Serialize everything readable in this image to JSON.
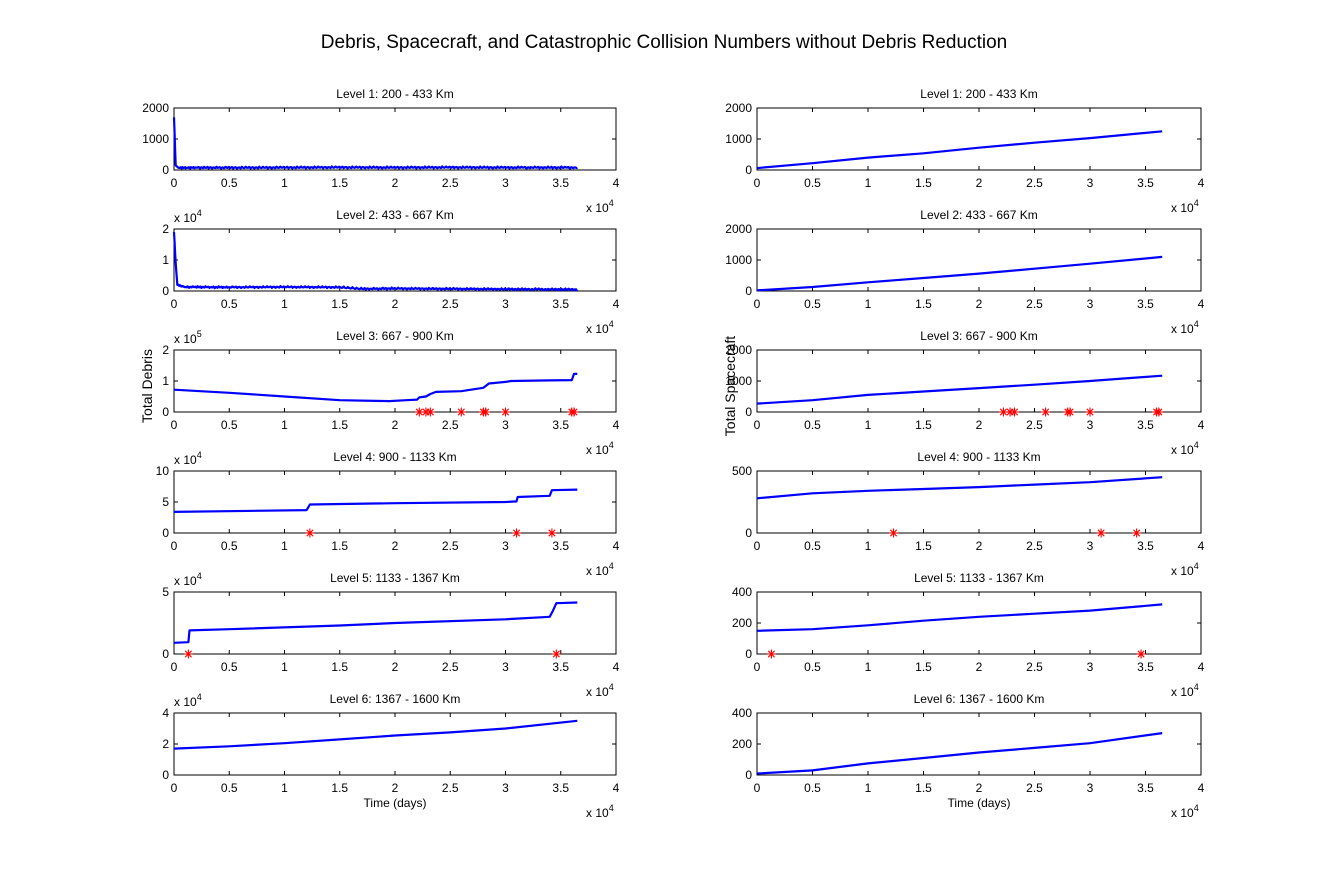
{
  "figure": {
    "title": "Debris, Spacecraft, and Catastrophic Collision Numbers without Debris Reduction"
  },
  "colors": {
    "line": "#0000ff",
    "marker": "#ff0000",
    "axes": "#000000",
    "background": "#ffffff"
  },
  "chart_data": [
    {
      "type": "line",
      "title": "Level 1: 200 - 433 Km",
      "column": "left",
      "row": 1,
      "xlabel": "",
      "ylabel": "",
      "xlim": [
        0,
        40000
      ],
      "ylim": [
        0,
        2000
      ],
      "xticks": [
        "0",
        "0.5",
        "1",
        "1.5",
        "2",
        "2.5",
        "3",
        "3.5",
        "4"
      ],
      "x_exponent": "4",
      "yticks": [
        "0",
        "1000",
        "2000"
      ],
      "y_exponent": null,
      "series": [
        {
          "noisy": true,
          "points": [
            [
              0,
              1700
            ],
            [
              150,
              150
            ],
            [
              400,
              70
            ],
            [
              2000,
              80
            ],
            [
              5000,
              75
            ],
            [
              10000,
              80
            ],
            [
              15000,
              85
            ],
            [
              20000,
              80
            ],
            [
              25000,
              85
            ],
            [
              30000,
              80
            ],
            [
              36500,
              80
            ]
          ]
        }
      ],
      "collisions": []
    },
    {
      "type": "line",
      "title": "Level 2: 433 - 667 Km",
      "column": "left",
      "row": 2,
      "xlabel": "",
      "ylabel": "",
      "xlim": [
        0,
        40000
      ],
      "ylim": [
        0,
        20000
      ],
      "xticks": [
        "0",
        "0.5",
        "1",
        "1.5",
        "2",
        "2.5",
        "3",
        "3.5",
        "4"
      ],
      "x_exponent": "4",
      "yticks": [
        "0",
        "1",
        "2"
      ],
      "y_exponent": "4",
      "series": [
        {
          "noisy": true,
          "points": [
            [
              0,
              19000
            ],
            [
              150,
              9000
            ],
            [
              300,
              2000
            ],
            [
              1000,
              1300
            ],
            [
              5000,
              1200
            ],
            [
              10000,
              1300
            ],
            [
              15000,
              1200
            ],
            [
              17000,
              700
            ],
            [
              20000,
              800
            ],
            [
              25000,
              700
            ],
            [
              30000,
              600
            ],
            [
              36500,
              500
            ]
          ]
        }
      ],
      "collisions": []
    },
    {
      "type": "line",
      "title": "Level 3: 667 - 900 Km",
      "column": "left",
      "row": 3,
      "xlabel": "",
      "ylabel": "Total Debris",
      "xlim": [
        0,
        40000
      ],
      "ylim": [
        0,
        200000
      ],
      "xticks": [
        "0",
        "0.5",
        "1",
        "1.5",
        "2",
        "2.5",
        "3",
        "3.5",
        "4"
      ],
      "x_exponent": "4",
      "yticks": [
        "0",
        "1",
        "2"
      ],
      "y_exponent": "5",
      "series": [
        {
          "noisy": false,
          "points": [
            [
              0,
              72000
            ],
            [
              5000,
              62000
            ],
            [
              10000,
              50000
            ],
            [
              15000,
              38000
            ],
            [
              19500,
              35000
            ],
            [
              21000,
              38000
            ],
            [
              22000,
              40000
            ],
            [
              22200,
              47000
            ],
            [
              22800,
              50000
            ],
            [
              23200,
              58000
            ],
            [
              23700,
              65000
            ],
            [
              26000,
              67000
            ],
            [
              26500,
              70000
            ],
            [
              28000,
              78000
            ],
            [
              28500,
              92000
            ],
            [
              30000,
              97000
            ],
            [
              30500,
              100000
            ],
            [
              34000,
              102000
            ],
            [
              36000,
              103000
            ],
            [
              36200,
              123000
            ],
            [
              36500,
              123000
            ]
          ]
        }
      ],
      "collisions": [
        22200,
        22800,
        23200,
        26000,
        28000,
        28200,
        30000,
        36000,
        36200
      ]
    },
    {
      "type": "line",
      "title": "Level 4: 900 - 1133 Km",
      "column": "left",
      "row": 4,
      "xlabel": "",
      "ylabel": "",
      "xlim": [
        0,
        40000
      ],
      "ylim": [
        0,
        100000
      ],
      "xticks": [
        "0",
        "0.5",
        "1",
        "1.5",
        "2",
        "2.5",
        "3",
        "3.5",
        "4"
      ],
      "x_exponent": "4",
      "yticks": [
        "0",
        "5",
        "10"
      ],
      "y_exponent": "4",
      "series": [
        {
          "noisy": false,
          "points": [
            [
              0,
              34000
            ],
            [
              12000,
              37000
            ],
            [
              12300,
              46000
            ],
            [
              20000,
              48000
            ],
            [
              30000,
              50000
            ],
            [
              31000,
              51000
            ],
            [
              31100,
              58000
            ],
            [
              34000,
              60000
            ],
            [
              34200,
              69000
            ],
            [
              36500,
              70000
            ]
          ]
        }
      ],
      "collisions": [
        12300,
        31000,
        34200
      ]
    },
    {
      "type": "line",
      "title": "Level 5: 1133 - 1367 Km",
      "column": "left",
      "row": 5,
      "xlabel": "",
      "ylabel": "",
      "xlim": [
        0,
        40000
      ],
      "ylim": [
        0,
        50000
      ],
      "xticks": [
        "0",
        "0.5",
        "1",
        "1.5",
        "2",
        "2.5",
        "3",
        "3.5",
        "4"
      ],
      "x_exponent": "4",
      "yticks": [
        "0",
        "5"
      ],
      "y_exponent": "4",
      "series": [
        {
          "noisy": false,
          "points": [
            [
              0,
              9000
            ],
            [
              1300,
              9500
            ],
            [
              1400,
              19000
            ],
            [
              5000,
              20000
            ],
            [
              15000,
              23000
            ],
            [
              20000,
              25000
            ],
            [
              30000,
              28000
            ],
            [
              34000,
              30000
            ],
            [
              34300,
              35000
            ],
            [
              34600,
              41000
            ],
            [
              36500,
              41500
            ]
          ]
        }
      ],
      "collisions": [
        1300,
        34600
      ]
    },
    {
      "type": "line",
      "title": "Level 6: 1367 - 1600 Km",
      "column": "left",
      "row": 6,
      "xlabel": "Time (days)",
      "ylabel": "",
      "xlim": [
        0,
        40000
      ],
      "ylim": [
        0,
        40000
      ],
      "xticks": [
        "0",
        "0.5",
        "1",
        "1.5",
        "2",
        "2.5",
        "3",
        "3.5",
        "4"
      ],
      "x_exponent": "4",
      "yticks": [
        "0",
        "2",
        "4"
      ],
      "y_exponent": "4",
      "series": [
        {
          "noisy": false,
          "points": [
            [
              0,
              17000
            ],
            [
              5000,
              18500
            ],
            [
              10000,
              20500
            ],
            [
              15000,
              23000
            ],
            [
              20000,
              25500
            ],
            [
              25000,
              27500
            ],
            [
              30000,
              30000
            ],
            [
              36500,
              35000
            ]
          ]
        }
      ],
      "collisions": []
    },
    {
      "type": "line",
      "title": "Level 1: 200 - 433 Km",
      "column": "right",
      "row": 1,
      "xlabel": "",
      "ylabel": "",
      "xlim": [
        0,
        40000
      ],
      "ylim": [
        0,
        2000
      ],
      "xticks": [
        "0",
        "0.5",
        "1",
        "1.5",
        "2",
        "2.5",
        "3",
        "3.5",
        "4"
      ],
      "x_exponent": "4",
      "yticks": [
        "0",
        "1000",
        "2000"
      ],
      "y_exponent": null,
      "series": [
        {
          "noisy": false,
          "points": [
            [
              0,
              60
            ],
            [
              5000,
              220
            ],
            [
              10000,
              400
            ],
            [
              15000,
              540
            ],
            [
              20000,
              720
            ],
            [
              25000,
              880
            ],
            [
              30000,
              1030
            ],
            [
              36500,
              1250
            ]
          ]
        }
      ],
      "collisions": []
    },
    {
      "type": "line",
      "title": "Level 2: 433 - 667 Km",
      "column": "right",
      "row": 2,
      "xlabel": "",
      "ylabel": "",
      "xlim": [
        0,
        40000
      ],
      "ylim": [
        0,
        2000
      ],
      "xticks": [
        "0",
        "0.5",
        "1",
        "1.5",
        "2",
        "2.5",
        "3",
        "3.5",
        "4"
      ],
      "x_exponent": "4",
      "yticks": [
        "0",
        "1000",
        "2000"
      ],
      "y_exponent": null,
      "series": [
        {
          "noisy": false,
          "points": [
            [
              0,
              20
            ],
            [
              5000,
              130
            ],
            [
              10000,
              280
            ],
            [
              15000,
              420
            ],
            [
              20000,
              560
            ],
            [
              25000,
              720
            ],
            [
              30000,
              880
            ],
            [
              36500,
              1100
            ]
          ]
        }
      ],
      "collisions": []
    },
    {
      "type": "line",
      "title": "Level 3: 667 - 900 Km",
      "column": "right",
      "row": 3,
      "xlabel": "",
      "ylabel": "Total Spacecraft",
      "xlim": [
        0,
        40000
      ],
      "ylim": [
        0,
        2000
      ],
      "xticks": [
        "0",
        "0.5",
        "1",
        "1.5",
        "2",
        "2.5",
        "3",
        "3.5",
        "4"
      ],
      "x_exponent": "4",
      "yticks": [
        "0",
        "1000",
        "2000"
      ],
      "y_exponent": null,
      "series": [
        {
          "noisy": false,
          "points": [
            [
              0,
              270
            ],
            [
              5000,
              380
            ],
            [
              10000,
              550
            ],
            [
              15000,
              660
            ],
            [
              20000,
              770
            ],
            [
              25000,
              880
            ],
            [
              30000,
              1000
            ],
            [
              36500,
              1170
            ]
          ]
        }
      ],
      "collisions": [
        22200,
        22800,
        23200,
        26000,
        28000,
        28200,
        30000,
        36000,
        36200
      ]
    },
    {
      "type": "line",
      "title": "Level 4: 900 - 1133 Km",
      "column": "right",
      "row": 4,
      "xlabel": "",
      "ylabel": "",
      "xlim": [
        0,
        40000
      ],
      "ylim": [
        0,
        500
      ],
      "xticks": [
        "0",
        "0.5",
        "1",
        "1.5",
        "2",
        "2.5",
        "3",
        "3.5",
        "4"
      ],
      "x_exponent": "4",
      "yticks": [
        "0",
        "500"
      ],
      "y_exponent": null,
      "series": [
        {
          "noisy": false,
          "points": [
            [
              0,
              280
            ],
            [
              5000,
              320
            ],
            [
              10000,
              340
            ],
            [
              15000,
              355
            ],
            [
              20000,
              370
            ],
            [
              25000,
              390
            ],
            [
              30000,
              410
            ],
            [
              36500,
              450
            ]
          ]
        }
      ],
      "collisions": [
        12300,
        31000,
        34200
      ]
    },
    {
      "type": "line",
      "title": "Level 5: 1133 - 1367 Km",
      "column": "right",
      "row": 5,
      "xlabel": "",
      "ylabel": "",
      "xlim": [
        0,
        40000
      ],
      "ylim": [
        0,
        400
      ],
      "xticks": [
        "0",
        "0.5",
        "1",
        "1.5",
        "2",
        "2.5",
        "3",
        "3.5",
        "4"
      ],
      "x_exponent": "4",
      "yticks": [
        "0",
        "200",
        "400"
      ],
      "y_exponent": null,
      "series": [
        {
          "noisy": false,
          "points": [
            [
              0,
              150
            ],
            [
              5000,
              160
            ],
            [
              10000,
              185
            ],
            [
              15000,
              215
            ],
            [
              20000,
              240
            ],
            [
              25000,
              260
            ],
            [
              30000,
              280
            ],
            [
              36500,
              320
            ]
          ]
        }
      ],
      "collisions": [
        1300,
        34600
      ]
    },
    {
      "type": "line",
      "title": "Level 6: 1367 - 1600 Km",
      "column": "right",
      "row": 6,
      "xlabel": "Time (days)",
      "ylabel": "",
      "xlim": [
        0,
        40000
      ],
      "ylim": [
        0,
        400
      ],
      "xticks": [
        "0",
        "0.5",
        "1",
        "1.5",
        "2",
        "2.5",
        "3",
        "3.5",
        "4"
      ],
      "x_exponent": "4",
      "yticks": [
        "0",
        "200",
        "400"
      ],
      "y_exponent": null,
      "series": [
        {
          "noisy": false,
          "points": [
            [
              0,
              10
            ],
            [
              5000,
              30
            ],
            [
              10000,
              75
            ],
            [
              15000,
              110
            ],
            [
              20000,
              145
            ],
            [
              25000,
              175
            ],
            [
              30000,
              205
            ],
            [
              36500,
              270
            ]
          ]
        }
      ],
      "collisions": []
    }
  ]
}
